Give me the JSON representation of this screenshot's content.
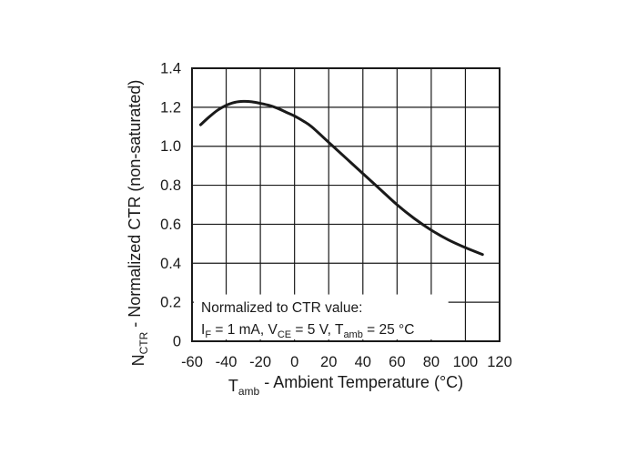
{
  "chart_data": {
    "type": "line",
    "ylabel": {
      "main": "N",
      "sub": "CTR",
      "rest": " - Normalized CTR (non-saturated)"
    },
    "xlabel": {
      "main": "T",
      "sub": "amb",
      "rest": " - Ambient Temperature (°C)"
    },
    "xlim": [
      -60,
      120
    ],
    "ylim": [
      0,
      1.4
    ],
    "xticks": [
      -60,
      -40,
      -20,
      0,
      20,
      40,
      60,
      80,
      100,
      120
    ],
    "yticks": [
      0,
      0.2,
      0.4,
      0.6,
      0.8,
      1.0,
      1.2,
      1.4
    ],
    "xtick_labels": [
      "-60",
      "-40",
      "-20",
      "0",
      "20",
      "40",
      "60",
      "80",
      "100",
      "120"
    ],
    "ytick_labels": [
      "0",
      "0.2",
      "0.4",
      "0.6",
      "0.8",
      "1.0",
      "1.2",
      "1.4"
    ],
    "grid": true,
    "annotation": {
      "line1": "Normalized to CTR value:",
      "line2_parts": [
        {
          "t": "I",
          "style": "normal"
        },
        {
          "t": "F",
          "style": "sub"
        },
        {
          "t": " = 1 mA, V",
          "style": "normal"
        },
        {
          "t": "CE",
          "style": "sub"
        },
        {
          "t": " = 5 V, T",
          "style": "normal"
        },
        {
          "t": "amb",
          "style": "sub"
        },
        {
          "t": " = 25 °C",
          "style": "normal"
        }
      ]
    },
    "series": [
      {
        "x": [
          -55,
          -50,
          -45,
          -40,
          -35,
          -30,
          -25,
          -20,
          -15,
          -10,
          -5,
          0,
          5,
          10,
          20,
          30,
          40,
          50,
          60,
          70,
          80,
          90,
          100,
          110
        ],
        "y": [
          1.11,
          1.15,
          1.185,
          1.21,
          1.225,
          1.23,
          1.228,
          1.22,
          1.21,
          1.195,
          1.175,
          1.155,
          1.13,
          1.1,
          1.02,
          0.94,
          0.86,
          0.78,
          0.7,
          0.63,
          0.57,
          0.52,
          0.48,
          0.445
        ]
      }
    ]
  }
}
